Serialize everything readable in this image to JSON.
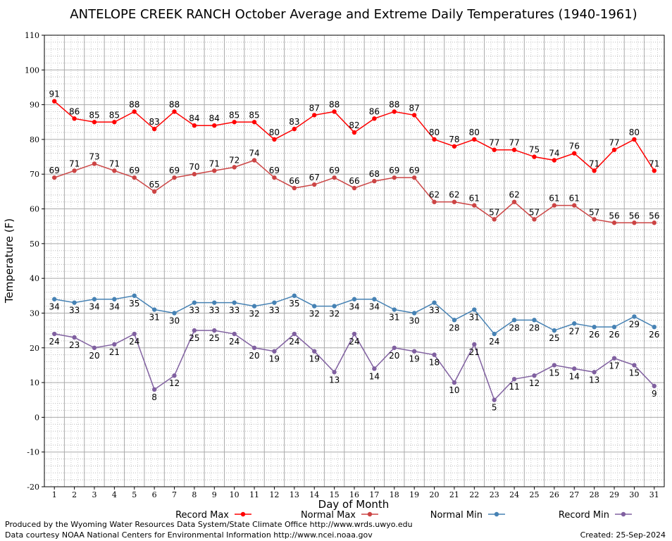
{
  "chart_data": {
    "type": "line",
    "title": "ANTELOPE CREEK RANCH October Average and Extreme Daily Temperatures (1940-1961)",
    "xlabel": "Day of Month",
    "ylabel": "Temperature (F)",
    "ylim": [
      -20,
      110
    ],
    "yticks": [
      -20,
      -10,
      0,
      10,
      20,
      30,
      40,
      50,
      60,
      70,
      80,
      90,
      100,
      110
    ],
    "x": [
      1,
      2,
      3,
      4,
      5,
      6,
      7,
      8,
      9,
      10,
      11,
      12,
      13,
      14,
      15,
      16,
      17,
      18,
      19,
      20,
      21,
      22,
      23,
      24,
      25,
      26,
      27,
      28,
      29,
      30,
      31
    ],
    "grid": true,
    "legend_position": "bottom",
    "series": [
      {
        "name": "Record Max",
        "color": "#ff0000",
        "label_pos": "above",
        "values": [
          91,
          86,
          85,
          85,
          88,
          83,
          88,
          84,
          84,
          85,
          85,
          80,
          83,
          87,
          88,
          82,
          86,
          88,
          87,
          80,
          78,
          80,
          77,
          77,
          75,
          74,
          76,
          71,
          77,
          80,
          71
        ]
      },
      {
        "name": "Normal Max",
        "color": "#cc4444",
        "label_pos": "above",
        "values": [
          69,
          71,
          73,
          71,
          69,
          65,
          69,
          70,
          71,
          72,
          74,
          69,
          66,
          67,
          69,
          66,
          68,
          69,
          69,
          62,
          62,
          61,
          57,
          62,
          57,
          61,
          61,
          57,
          56,
          56,
          56
        ]
      },
      {
        "name": "Normal Min",
        "color": "#4682b4",
        "label_pos": "below",
        "values": [
          34,
          33,
          34,
          34,
          35,
          31,
          30,
          33,
          33,
          33,
          32,
          33,
          35,
          32,
          32,
          34,
          34,
          31,
          30,
          33,
          28,
          31,
          24,
          28,
          28,
          25,
          27,
          26,
          26,
          29,
          26
        ]
      },
      {
        "name": "Record Min",
        "color": "#8060a0",
        "label_pos": "below",
        "values": [
          24,
          23,
          20,
          21,
          24,
          8,
          12,
          25,
          25,
          24,
          20,
          19,
          24,
          19,
          13,
          24,
          14,
          20,
          19,
          18,
          10,
          21,
          5,
          11,
          12,
          15,
          14,
          13,
          17,
          15,
          9
        ]
      }
    ]
  },
  "footer": {
    "line1": "Produced by the Wyoming Water Resources Data System/State Climate Office http://www.wrds.uwyo.edu",
    "line2": "Data courtesy NOAA National Centers for Environmental Information http://www.ncei.noaa.gov",
    "created": "Created:  25-Sep-2024"
  }
}
